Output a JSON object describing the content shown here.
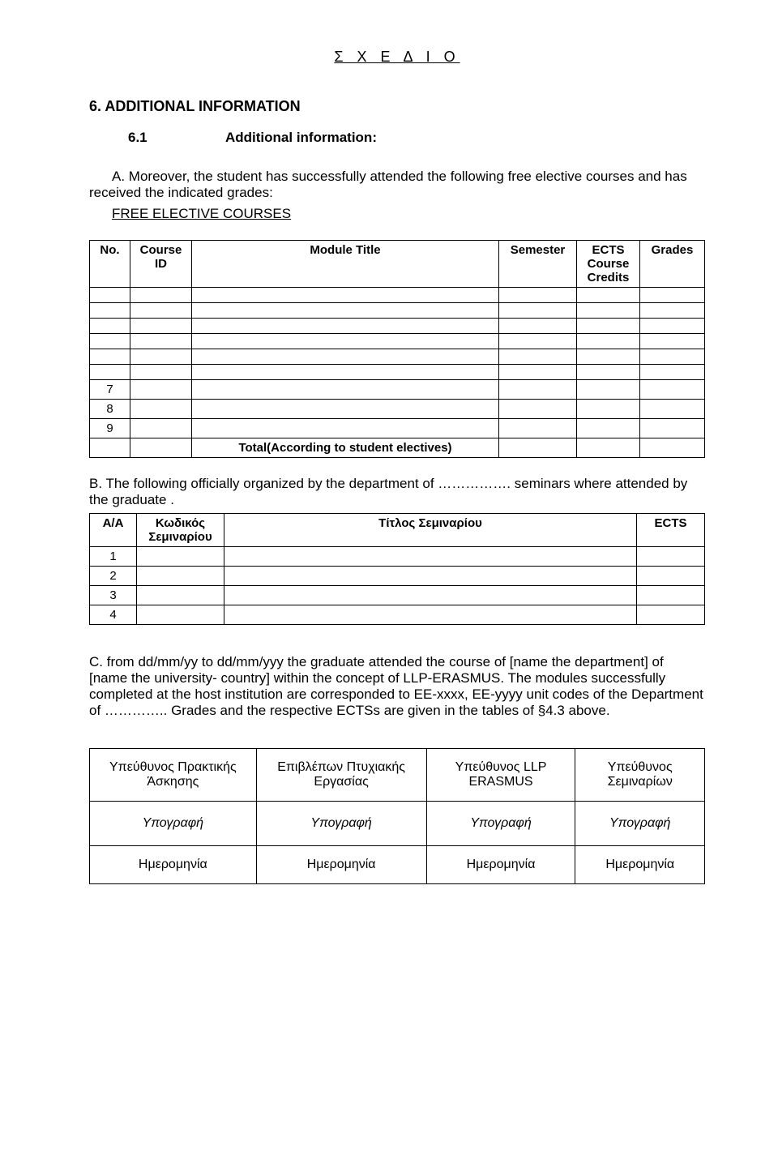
{
  "header": "Σ Χ Ε Δ Ι Ο",
  "section6": {
    "heading": "6. ADDITIONAL INFORMATION",
    "subnum": "6.1",
    "subtitle": "Additional information:",
    "paraA_prefix": "A.",
    "paraA": "Moreover, the student has successfully attended the following free elective courses and has received the indicated grades:",
    "free_title": "FREE ELECTIVE COURSES"
  },
  "table1": {
    "head": {
      "no": "No.",
      "cid": "Course ID",
      "mt": "Module Title",
      "sem": "Semester",
      "ects": "ECTS Course Credits",
      "grades": "Grades"
    },
    "nums": [
      "7",
      "8",
      "9"
    ],
    "total": "Total(According to student electives)"
  },
  "paraB": "B. The following officially organized by the department of ……………. seminars where attended by the graduate .",
  "table2": {
    "head": {
      "aa": "Α/Α",
      "code": "Κωδικός Σεμιναρίου",
      "title": "Τίτλος Σεμιναρίου",
      "ects": "ECTS"
    },
    "nums": [
      "1",
      "2",
      "3",
      "4"
    ]
  },
  "paraC": "C. from dd/mm/yy to dd/mm/yyy the graduate attended the course of [name the department] of [name the university- country] within the concept of LLP-ERASMUS. The modules successfully completed at the host institution are corresponded to EE-xxxx, EE-yyyy unit codes of the Department of ………….. Grades and the respective ECTSs are given in the tables of §4.3 above.",
  "table3": {
    "r1": [
      "Υπεύθυνος Πρακτικής Άσκησης",
      "Επιβλέπων Πτυχιακής Εργασίας",
      "Υπεύθυνος LLP ERASMUS",
      "Υπεύθυνος Σεμιναρίων"
    ],
    "r2": [
      "Υπογραφή",
      "Υπογραφή",
      "Υπογραφή",
      "Υπογραφή"
    ],
    "r3": [
      "Ημερομηνία",
      "Ημερομηνία",
      "Ημερομηνία",
      "Ημερομηνία"
    ]
  }
}
